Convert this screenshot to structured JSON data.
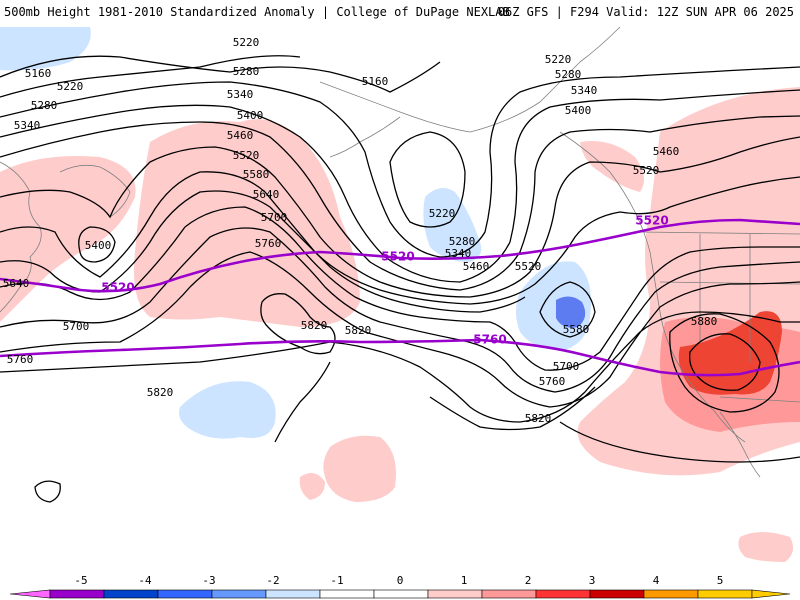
{
  "header": {
    "title": "500mb Height 1981-2010 Standardized Anomaly | College of DuPage NEXLAB",
    "run_info": "06Z GFS | F294 Valid: 12Z SUN APR 06 2025"
  },
  "map": {
    "height_labels": [
      "5160",
      "5220",
      "5280",
      "5340",
      "5400",
      "5460",
      "5520",
      "5580",
      "5640",
      "5700",
      "5760",
      "5820",
      "5880"
    ],
    "highlight_labels": [
      "5520",
      "5760"
    ],
    "colors": {
      "highlight_contour": "#9900cc",
      "contour": "#000000",
      "coastline": "#808080",
      "anomaly_pos_1": "#ffcccc",
      "anomaly_pos_2": "#ff9999",
      "anomaly_pos_3": "#ee4433",
      "anomaly_neg_1": "#cce4ff",
      "anomaly_neg_2": "#5c7cf0"
    }
  },
  "legend": {
    "ticks": [
      "-5",
      "-4",
      "-3",
      "-2",
      "-1",
      "0",
      "1",
      "2",
      "3",
      "4",
      "5"
    ],
    "colors": [
      "#9900cc",
      "#0044cc",
      "#3366ff",
      "#6699ff",
      "#cce4ff",
      "#ffffff",
      "#ffffff",
      "#ffcccc",
      "#ff9999",
      "#ff3333",
      "#cc0000",
      "#ff9900",
      "#ffcc00"
    ]
  }
}
